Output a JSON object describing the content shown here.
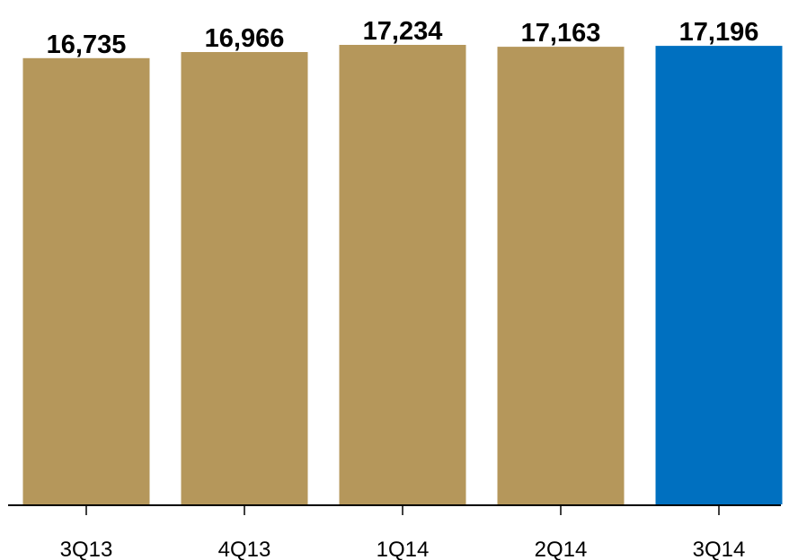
{
  "chart_data": {
    "type": "bar",
    "categories": [
      "3Q13",
      "4Q13",
      "1Q14",
      "2Q14",
      "3Q14"
    ],
    "values": [
      16735,
      16966,
      17234,
      17163,
      17196
    ],
    "value_labels": [
      "16,735",
      "16,966",
      "17,234",
      "17,163",
      "17,196"
    ],
    "ylim": [
      0,
      17234
    ],
    "grid": false,
    "colors": {
      "default_bar": "#B5975B",
      "highlight_bar": "#0070C0",
      "axis": "#000000"
    },
    "highlight_index": 4
  }
}
